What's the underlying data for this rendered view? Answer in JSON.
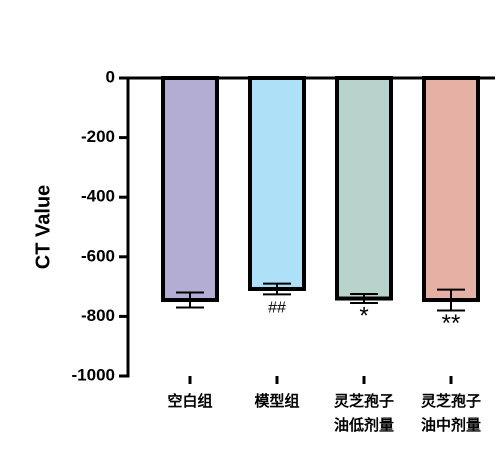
{
  "chart_data": {
    "type": "bar",
    "y_label": "CT Value",
    "categories": [
      "空白组",
      "模型组",
      "灵芝孢子油低剂量",
      "灵芝孢子油中剂量"
    ],
    "values": [
      -745,
      -708,
      -740,
      -745
    ],
    "errors": [
      25,
      18,
      15,
      35
    ],
    "colors": [
      "#b3acd3",
      "#aee0f8",
      "#b7d3cc",
      "#e5b1a4"
    ],
    "annotations": [
      null,
      "##",
      "*",
      "**"
    ],
    "ylim": [
      -1000,
      0
    ],
    "yticks": [
      0,
      -200,
      -400,
      -600,
      -800,
      -1000
    ]
  }
}
